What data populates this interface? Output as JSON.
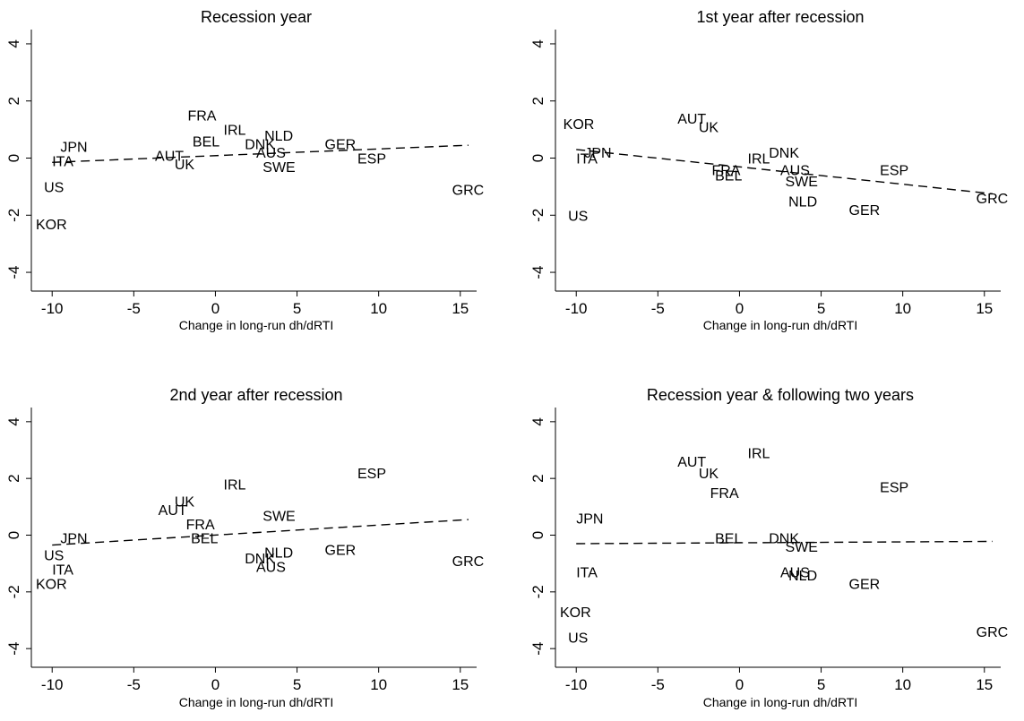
{
  "chart_data": [
    {
      "type": "scatter",
      "title": "Recession year",
      "xlabel": "Change in long-run dh/dRTI",
      "ylabel": "",
      "xlim": [
        -11,
        16
      ],
      "ylim": [
        -4.5,
        4.5
      ],
      "xticks": [
        -10,
        -5,
        0,
        5,
        10,
        15
      ],
      "yticks": [
        -4,
        -2,
        0,
        2,
        4
      ],
      "grid": false,
      "points": [
        {
          "label": "JPN",
          "x": -9.5,
          "y": 0.4
        },
        {
          "label": "ITA",
          "x": -10.0,
          "y": -0.1
        },
        {
          "label": "US",
          "x": -10.5,
          "y": -1.0
        },
        {
          "label": "KOR",
          "x": -11.0,
          "y": -2.3
        },
        {
          "label": "AUT",
          "x": -3.7,
          "y": 0.1
        },
        {
          "label": "UK",
          "x": -2.5,
          "y": -0.2
        },
        {
          "label": "FRA",
          "x": -1.7,
          "y": 1.5
        },
        {
          "label": "BEL",
          "x": -1.4,
          "y": 0.6
        },
        {
          "label": "IRL",
          "x": 0.5,
          "y": 1.0
        },
        {
          "label": "DNK",
          "x": 1.8,
          "y": 0.5
        },
        {
          "label": "NLD",
          "x": 3.0,
          "y": 0.8
        },
        {
          "label": "AUS",
          "x": 2.5,
          "y": 0.2
        },
        {
          "label": "SWE",
          "x": 2.9,
          "y": -0.3
        },
        {
          "label": "GER",
          "x": 6.7,
          "y": 0.5
        },
        {
          "label": "ESP",
          "x": 8.7,
          "y": 0.0
        },
        {
          "label": "GRC",
          "x": 14.5,
          "y": -1.1
        }
      ],
      "fit_line": {
        "x": [
          -10,
          15.5
        ],
        "y": [
          -0.15,
          0.45
        ]
      }
    },
    {
      "type": "scatter",
      "title": "1st year after recession",
      "xlabel": "Change in long-run dh/dRTI",
      "ylabel": "",
      "xlim": [
        -11,
        16
      ],
      "ylim": [
        -4.5,
        4.5
      ],
      "xticks": [
        -10,
        -5,
        0,
        5,
        10,
        15
      ],
      "yticks": [
        -4,
        -2,
        0,
        2,
        4
      ],
      "grid": false,
      "points": [
        {
          "label": "KOR",
          "x": -10.8,
          "y": 1.2
        },
        {
          "label": "JPN",
          "x": -9.5,
          "y": 0.2
        },
        {
          "label": "ITA",
          "x": -10.0,
          "y": 0.0
        },
        {
          "label": "US",
          "x": -10.5,
          "y": -2.0
        },
        {
          "label": "AUT",
          "x": -3.8,
          "y": 1.4
        },
        {
          "label": "UK",
          "x": -2.5,
          "y": 1.1
        },
        {
          "label": "FRA",
          "x": -1.7,
          "y": -0.4
        },
        {
          "label": "BEL",
          "x": -1.5,
          "y": -0.6
        },
        {
          "label": "IRL",
          "x": 0.5,
          "y": 0.0
        },
        {
          "label": "DNK",
          "x": 1.8,
          "y": 0.2
        },
        {
          "label": "AUS",
          "x": 2.5,
          "y": -0.4
        },
        {
          "label": "SWE",
          "x": 2.8,
          "y": -0.8
        },
        {
          "label": "NLD",
          "x": 3.0,
          "y": -1.5
        },
        {
          "label": "GER",
          "x": 6.7,
          "y": -1.8
        },
        {
          "label": "ESP",
          "x": 8.6,
          "y": -0.4
        },
        {
          "label": "GRC",
          "x": 14.5,
          "y": -1.4
        }
      ],
      "fit_line": {
        "x": [
          -10,
          15.5
        ],
        "y": [
          0.3,
          -1.25
        ]
      }
    },
    {
      "type": "scatter",
      "title": "2nd year after recession",
      "xlabel": "Change in long-run dh/dRTI",
      "ylabel": "",
      "xlim": [
        -11,
        16
      ],
      "ylim": [
        -4.5,
        4.5
      ],
      "xticks": [
        -10,
        -5,
        0,
        5,
        10,
        15
      ],
      "yticks": [
        -4,
        -2,
        0,
        2,
        4
      ],
      "grid": false,
      "points": [
        {
          "label": "JPN",
          "x": -9.5,
          "y": -0.1
        },
        {
          "label": "US",
          "x": -10.5,
          "y": -0.7
        },
        {
          "label": "ITA",
          "x": -10.0,
          "y": -1.2
        },
        {
          "label": "KOR",
          "x": -11.0,
          "y": -1.7
        },
        {
          "label": "UK",
          "x": -2.5,
          "y": 1.2
        },
        {
          "label": "AUT",
          "x": -3.5,
          "y": 0.9
        },
        {
          "label": "FRA",
          "x": -1.8,
          "y": 0.4
        },
        {
          "label": "BEL",
          "x": -1.5,
          "y": -0.1
        },
        {
          "label": "IRL",
          "x": 0.5,
          "y": 1.8
        },
        {
          "label": "SWE",
          "x": 2.9,
          "y": 0.7
        },
        {
          "label": "NLD",
          "x": 3.0,
          "y": -0.6
        },
        {
          "label": "DNK",
          "x": 1.8,
          "y": -0.8
        },
        {
          "label": "AUS",
          "x": 2.5,
          "y": -1.1
        },
        {
          "label": "GER",
          "x": 6.7,
          "y": -0.5
        },
        {
          "label": "ESP",
          "x": 8.7,
          "y": 2.2
        },
        {
          "label": "GRC",
          "x": 14.5,
          "y": -0.9
        }
      ],
      "fit_line": {
        "x": [
          -10,
          15.5
        ],
        "y": [
          -0.35,
          0.55
        ]
      }
    },
    {
      "type": "scatter",
      "title": "Recession year & following two years",
      "xlabel": "Change in long-run dh/dRTI",
      "ylabel": "",
      "xlim": [
        -11,
        16
      ],
      "ylim": [
        -4.5,
        4.5
      ],
      "xticks": [
        -10,
        -5,
        0,
        5,
        10,
        15
      ],
      "yticks": [
        -4,
        -2,
        0,
        2,
        4
      ],
      "grid": false,
      "points": [
        {
          "label": "JPN",
          "x": -10.0,
          "y": 0.6
        },
        {
          "label": "ITA",
          "x": -10.0,
          "y": -1.3
        },
        {
          "label": "KOR",
          "x": -11.0,
          "y": -2.7
        },
        {
          "label": "US",
          "x": -10.5,
          "y": -3.6
        },
        {
          "label": "AUT",
          "x": -3.8,
          "y": 2.6
        },
        {
          "label": "UK",
          "x": -2.5,
          "y": 2.2
        },
        {
          "label": "FRA",
          "x": -1.8,
          "y": 1.5
        },
        {
          "label": "IRL",
          "x": 0.5,
          "y": 2.9
        },
        {
          "label": "BEL",
          "x": -1.5,
          "y": -0.1
        },
        {
          "label": "DNK",
          "x": 1.8,
          "y": -0.1
        },
        {
          "label": "SWE",
          "x": 2.8,
          "y": -0.4
        },
        {
          "label": "AUS",
          "x": 2.5,
          "y": -1.3
        },
        {
          "label": "NLD",
          "x": 3.0,
          "y": -1.4
        },
        {
          "label": "GER",
          "x": 6.7,
          "y": -1.7
        },
        {
          "label": "ESP",
          "x": 8.6,
          "y": 1.7
        },
        {
          "label": "GRC",
          "x": 14.5,
          "y": -3.4
        }
      ],
      "fit_line": {
        "x": [
          -10,
          15.5
        ],
        "y": [
          -0.3,
          -0.22
        ]
      }
    }
  ]
}
